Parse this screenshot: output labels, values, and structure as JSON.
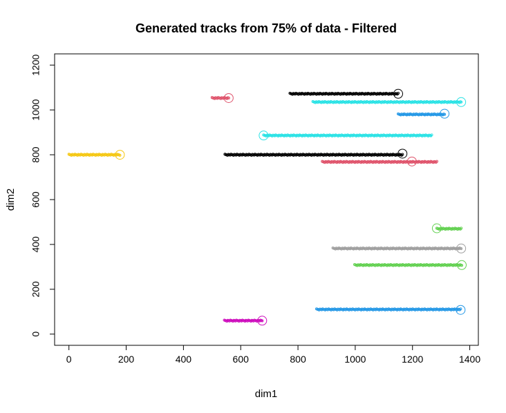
{
  "chart_data": {
    "type": "scatter",
    "title": "Generated tracks from 75% of data - Filtered",
    "xlabel": "dim1",
    "ylabel": "dim2",
    "xlim": [
      -50,
      1430
    ],
    "ylim": [
      -50,
      1250
    ],
    "xticks": [
      0,
      200,
      400,
      600,
      800,
      1000,
      1200,
      1400
    ],
    "yticks": [
      0,
      200,
      400,
      600,
      800,
      1000,
      1200
    ],
    "grid": false,
    "legend": "none",
    "series": [
      {
        "color": "#F5C710",
        "x_start": 0,
        "x_end": 178,
        "y": 800,
        "end_x": 178,
        "end_y": 800
      },
      {
        "color": "#DF536B",
        "x_start": 500,
        "x_end": 558,
        "y": 1053,
        "end_x": 558,
        "end_y": 1053
      },
      {
        "color": "#000000",
        "x_start": 772,
        "x_end": 1150,
        "y": 1072,
        "end_x": 1150,
        "end_y": 1072
      },
      {
        "color": "#28E2E5",
        "x_start": 852,
        "x_end": 1370,
        "y": 1035,
        "end_x": 1370,
        "end_y": 1035
      },
      {
        "color": "#2297E6",
        "x_start": 1150,
        "x_end": 1312,
        "y": 980,
        "end_x": 1312,
        "end_y": 983
      },
      {
        "color": "#28E2E5",
        "x_start": 680,
        "x_end": 1267,
        "y": 886,
        "end_x": 680,
        "end_y": 886
      },
      {
        "color": "#000000",
        "x_start": 545,
        "x_end": 1165,
        "y": 800,
        "end_x": 1165,
        "end_y": 805
      },
      {
        "color": "#DF536B",
        "x_start": 885,
        "x_end": 1285,
        "y": 768,
        "end_x": 1198,
        "end_y": 770
      },
      {
        "color": "#61D04F",
        "x_start": 1285,
        "x_end": 1370,
        "y": 470,
        "end_x": 1285,
        "end_y": 472
      },
      {
        "color": "#9E9E9E",
        "x_start": 922,
        "x_end": 1370,
        "y": 382,
        "end_x": 1370,
        "end_y": 382
      },
      {
        "color": "#61D04F",
        "x_start": 998,
        "x_end": 1372,
        "y": 308,
        "end_x": 1372,
        "end_y": 308
      },
      {
        "color": "#2297E6",
        "x_start": 865,
        "x_end": 1368,
        "y": 110,
        "end_x": 1368,
        "end_y": 108
      },
      {
        "color": "#CD0BBC",
        "x_start": 543,
        "x_end": 675,
        "y": 60,
        "end_x": 675,
        "end_y": 60
      }
    ]
  }
}
